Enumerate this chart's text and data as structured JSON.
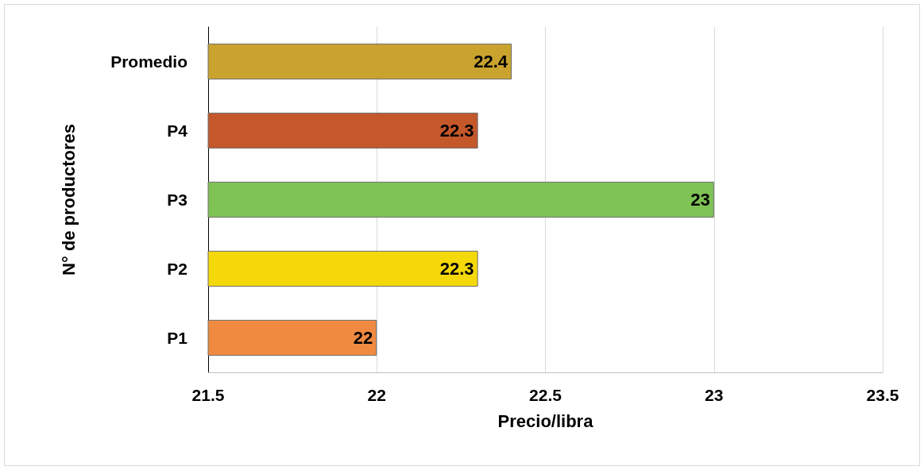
{
  "chart_data": {
    "type": "bar",
    "orientation": "horizontal",
    "xlabel": "Precio/libra",
    "ylabel": "N° de productores",
    "categories": [
      "Promedio",
      "P4",
      "P3",
      "P2",
      "P1"
    ],
    "values": [
      22.4,
      22.3,
      23,
      22.3,
      22
    ],
    "colors": [
      "#c9a32e",
      "#c4582b",
      "#7fc255",
      "#f5d80a",
      "#f08a40"
    ],
    "xlim": [
      21.5,
      23.5
    ],
    "xticks": [
      21.5,
      22,
      22.5,
      23,
      23.5
    ],
    "grid": "x",
    "data_labels": true
  }
}
